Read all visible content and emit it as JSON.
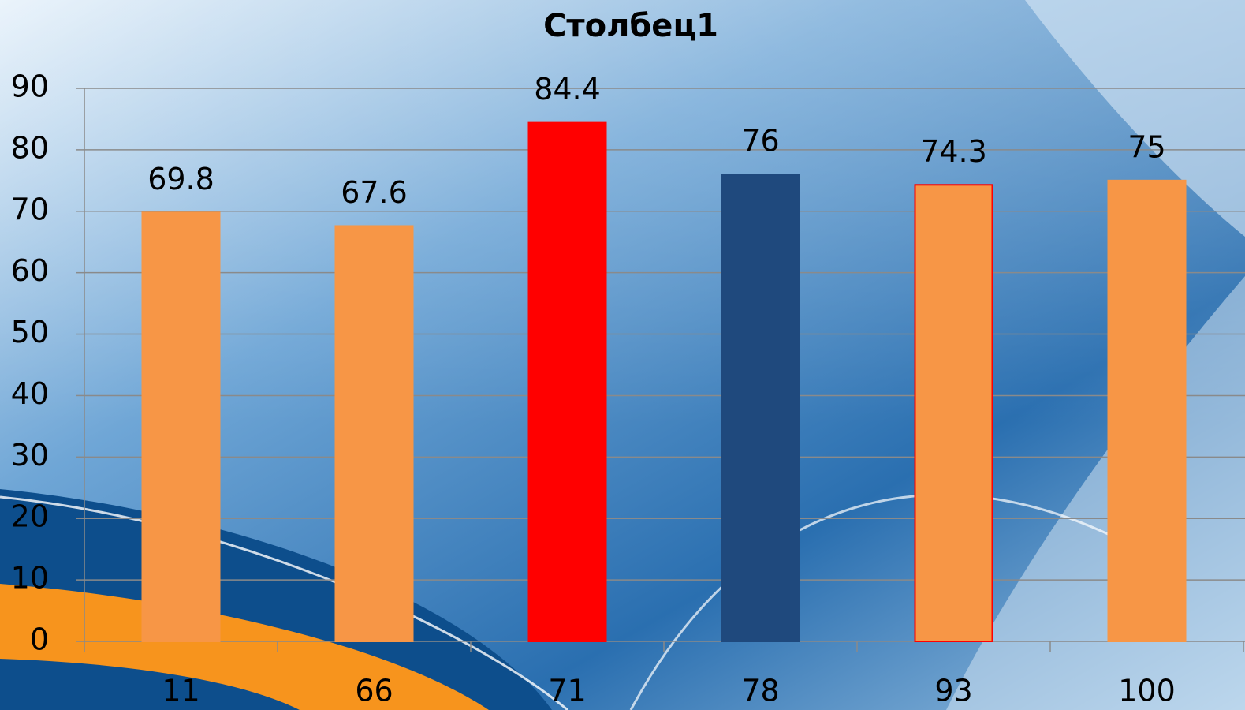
{
  "chart_data": {
    "type": "bar",
    "title": "Столбец1",
    "categories": [
      "11",
      "66",
      "71",
      "78",
      "93",
      "100"
    ],
    "values": [
      69.8,
      67.6,
      84.4,
      76,
      74.3,
      75
    ],
    "colors": [
      "#f79646",
      "#f79646",
      "#ff0000",
      "#1f497d",
      "#f79646",
      "#f79646"
    ],
    "edgecolors": [
      "#f79646",
      "#f79646",
      "#ff0000",
      "#1f497d",
      "#ff0000",
      "#f79646"
    ],
    "ylim": [
      0,
      90
    ],
    "yticks": [
      0,
      10,
      20,
      30,
      40,
      50,
      60,
      70,
      80,
      90
    ],
    "grid": true
  }
}
